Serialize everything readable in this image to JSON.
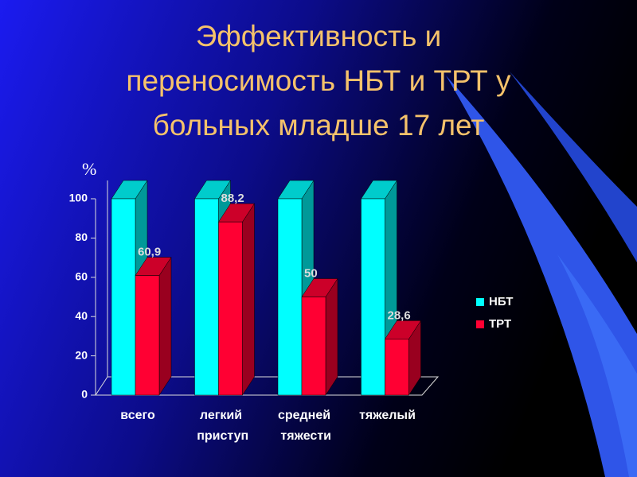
{
  "chart_data": {
    "type": "bar3d",
    "title": [
      "Эффективность и",
      "переносимость НБТ и ТРТ у",
      "больных младше 17 лет"
    ],
    "y_axis_label": "%",
    "categories": [
      "всего",
      "легкий приступ",
      "средней тяжести",
      "тяжелый"
    ],
    "series": [
      {
        "name": "НБТ",
        "color": "#00ffff",
        "values": [
          100,
          100,
          100,
          100
        ]
      },
      {
        "name": "ТРТ",
        "color": "#ff0033",
        "values": [
          60.9,
          88.2,
          50,
          28.6
        ],
        "value_labels": [
          "60,9",
          "88,2",
          "50",
          "28,6"
        ]
      }
    ],
    "ylim": [
      0,
      100
    ],
    "yticks": [
      0,
      20,
      40,
      60,
      80,
      100
    ],
    "legend": "right"
  }
}
